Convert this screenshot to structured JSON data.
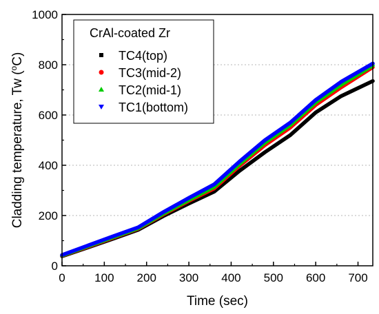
{
  "chart_data": {
    "type": "line",
    "title": "",
    "xlabel": "Time (sec)",
    "ylabel_main": "Cladding temperature, Tw (",
    "ylabel_sup": "o",
    "ylabel_end": "C)",
    "xlim": [
      0,
      735
    ],
    "ylim": [
      0,
      1000
    ],
    "xticks": [
      0,
      100,
      200,
      300,
      400,
      500,
      600,
      700
    ],
    "yticks": [
      0,
      200,
      400,
      600,
      800,
      1000
    ],
    "grid": "horizontal-dashed",
    "legend": {
      "title": "CrAl-coated Zr",
      "placement": "top-left"
    },
    "series": [
      {
        "name": "TC4(top)",
        "color": "#000000",
        "marker": "square",
        "x": [
          0,
          60,
          120,
          180,
          240,
          300,
          360,
          420,
          480,
          540,
          600,
          660,
          735
        ],
        "y": [
          38,
          72,
          107,
          143,
          198,
          248,
          295,
          378,
          452,
          520,
          610,
          675,
          735
        ]
      },
      {
        "name": "TC3(mid-2)",
        "color": "#ff0000",
        "marker": "circle",
        "x": [
          0,
          60,
          120,
          180,
          240,
          300,
          360,
          420,
          480,
          540,
          600,
          660,
          735
        ],
        "y": [
          40,
          75,
          111,
          147,
          205,
          258,
          308,
          398,
          480,
          550,
          640,
          710,
          790
        ]
      },
      {
        "name": "TC2(mid-1)",
        "color": "#00cc00",
        "marker": "triangle-up",
        "x": [
          0,
          60,
          120,
          180,
          240,
          300,
          360,
          420,
          480,
          540,
          600,
          660,
          735
        ],
        "y": [
          41,
          77,
          113,
          149,
          208,
          262,
          314,
          405,
          490,
          560,
          650,
          720,
          797
        ]
      },
      {
        "name": "TC1(bottom)",
        "color": "#0000ff",
        "marker": "triangle-down",
        "x": [
          0,
          60,
          120,
          180,
          240,
          300,
          360,
          420,
          480,
          540,
          600,
          660,
          735
        ],
        "y": [
          43,
          80,
          117,
          153,
          214,
          270,
          324,
          415,
          500,
          570,
          660,
          732,
          805
        ]
      }
    ]
  }
}
